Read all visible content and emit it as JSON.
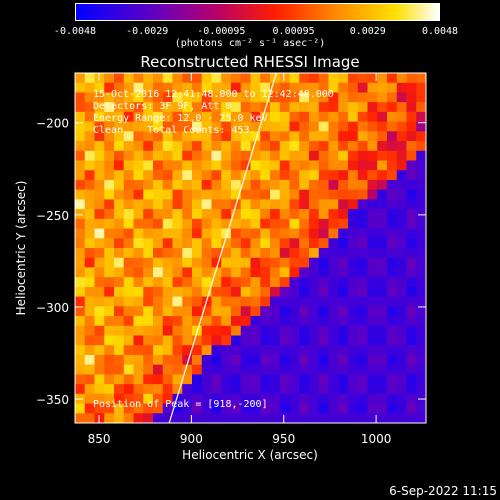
{
  "colorbar": {
    "ticks": [
      "-0.0048",
      "-0.0029",
      "-0.00095",
      "0.00095",
      "0.0029",
      "0.0048"
    ],
    "tick_values": [
      -0.0048,
      -0.0029,
      -0.00095,
      0.00095,
      0.0029,
      0.0048
    ],
    "range": [
      -0.0048,
      0.0048
    ],
    "label": "(photons cm⁻² s⁻¹ asec⁻²)"
  },
  "chart_data": {
    "type": "heatmap",
    "title": "Reconstructed RHESSI Image",
    "xlabel": "Heliocentric X (arcsec)",
    "ylabel": "Heliocentric Y (arcsec)",
    "xlim": [
      837,
      1027
    ],
    "ylim": [
      -363,
      -173
    ],
    "x_ticks": [
      {
        "value": 850,
        "label": "850"
      },
      {
        "value": 900,
        "label": "900"
      },
      {
        "value": 950,
        "label": "950"
      },
      {
        "value": 1000,
        "label": "1000"
      }
    ],
    "y_ticks": [
      {
        "value": -200,
        "label": "−200"
      },
      {
        "value": -250,
        "label": "−250"
      },
      {
        "value": -300,
        "label": "−300"
      },
      {
        "value": -350,
        "label": "−350"
      }
    ],
    "limb_line": [
      [
        888,
        -363
      ],
      [
        946,
        -173
      ]
    ],
    "colormap": "rainbow-blue-purple-red-orange-yellow-white"
  },
  "annotations": {
    "time_range": "15-Oct-2016 12:41:48.000 to 12:42:48.000",
    "detectors": "Detectors: 3F 9F, Att 0",
    "energy": "Energy Range: 12.0 - 25.0 keV",
    "method": "Clean    Total Counts: 453.",
    "peak": "Position of Peak = [918,-200]"
  },
  "date_stamp": "6-Sep-2022 11:15"
}
